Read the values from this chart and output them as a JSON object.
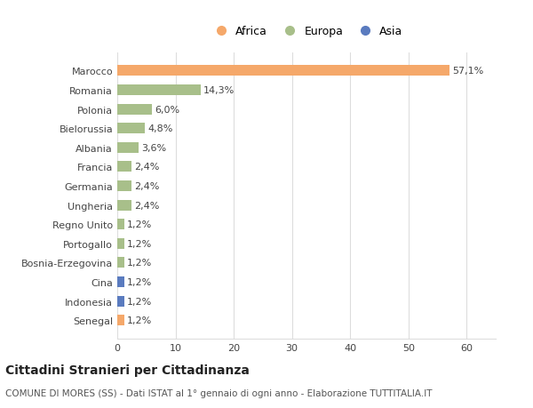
{
  "categories": [
    "Marocco",
    "Romania",
    "Polonia",
    "Bielorussia",
    "Albania",
    "Francia",
    "Germania",
    "Ungheria",
    "Regno Unito",
    "Portogallo",
    "Bosnia-Erzegovina",
    "Cina",
    "Indonesia",
    "Senegal"
  ],
  "values": [
    57.1,
    14.3,
    6.0,
    4.8,
    3.6,
    2.4,
    2.4,
    2.4,
    1.2,
    1.2,
    1.2,
    1.2,
    1.2,
    1.2
  ],
  "labels": [
    "57,1%",
    "14,3%",
    "6,0%",
    "4,8%",
    "3,6%",
    "2,4%",
    "2,4%",
    "2,4%",
    "1,2%",
    "1,2%",
    "1,2%",
    "1,2%",
    "1,2%",
    "1,2%"
  ],
  "continents": [
    "Africa",
    "Europa",
    "Europa",
    "Europa",
    "Europa",
    "Europa",
    "Europa",
    "Europa",
    "Europa",
    "Europa",
    "Europa",
    "Asia",
    "Asia",
    "Africa"
  ],
  "colors": {
    "Africa": "#F5A86A",
    "Europa": "#A8BF8A",
    "Asia": "#5A7BBF"
  },
  "title": "Cittadini Stranieri per Cittadinanza",
  "subtitle": "COMUNE DI MORES (SS) - Dati ISTAT al 1° gennaio di ogni anno - Elaborazione TUTTITALIA.IT",
  "xlim": [
    0,
    65
  ],
  "xticks": [
    0,
    10,
    20,
    30,
    40,
    50,
    60
  ],
  "background_color": "#ffffff",
  "grid_color": "#dddddd",
  "bar_height": 0.55,
  "label_fontsize": 8,
  "title_fontsize": 10,
  "subtitle_fontsize": 7.5,
  "tick_fontsize": 8,
  "legend_fontsize": 9
}
